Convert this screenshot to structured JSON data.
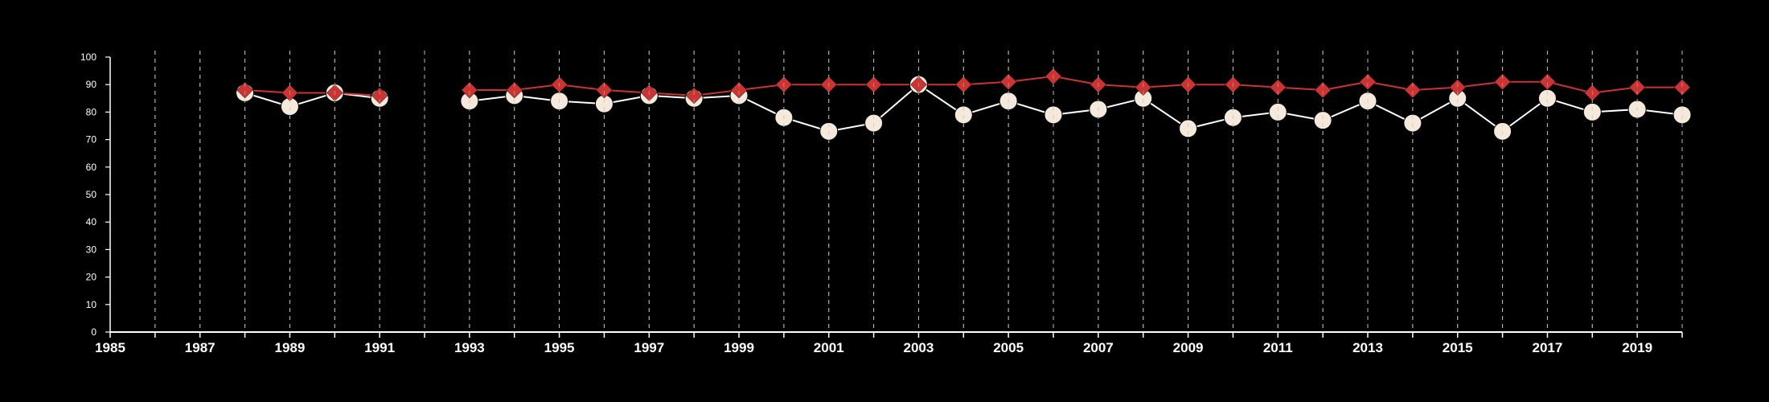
{
  "chart_data": {
    "type": "line",
    "title": "",
    "xlabel": "",
    "ylabel": "",
    "xlim": [
      1985,
      2020
    ],
    "ylim": [
      0,
      100
    ],
    "yticks": [
      0,
      10,
      20,
      30,
      40,
      50,
      60,
      70,
      80,
      90,
      100
    ],
    "xticks": [
      1985,
      1987,
      1989,
      1991,
      1993,
      1995,
      1997,
      1999,
      2001,
      2003,
      2005,
      2007,
      2009,
      2011,
      2013,
      2015,
      2017,
      2019
    ],
    "vertical_gridlines": "dashed, every year",
    "legend": "none",
    "colors": {
      "background": "#000000",
      "axis": "#ffffff",
      "grid": "#bbbbbb",
      "red_series": "#cc3333",
      "cream_series": "#f5e9dc"
    },
    "series": [
      {
        "marker": "diamond",
        "color": "#cc3333",
        "points": [
          [
            1988,
            88
          ],
          [
            1989,
            87
          ],
          [
            1990,
            87
          ],
          [
            1991,
            86
          ],
          [
            1993,
            88
          ],
          [
            1994,
            88
          ],
          [
            1995,
            90
          ],
          [
            1996,
            88
          ],
          [
            1997,
            87
          ],
          [
            1998,
            86
          ],
          [
            1999,
            88
          ],
          [
            2000,
            90
          ],
          [
            2001,
            90
          ],
          [
            2002,
            90
          ],
          [
            2003,
            90
          ],
          [
            2004,
            90
          ],
          [
            2005,
            91
          ],
          [
            2006,
            93
          ],
          [
            2007,
            90
          ],
          [
            2008,
            89
          ],
          [
            2009,
            90
          ],
          [
            2010,
            90
          ],
          [
            2011,
            89
          ],
          [
            2012,
            88
          ],
          [
            2013,
            91
          ],
          [
            2014,
            88
          ],
          [
            2015,
            89
          ],
          [
            2016,
            91
          ],
          [
            2017,
            91
          ],
          [
            2018,
            87
          ],
          [
            2019,
            89
          ],
          [
            2020,
            89
          ]
        ]
      },
      {
        "marker": "circle",
        "color": "#f5e9dc",
        "points": [
          [
            1988,
            87
          ],
          [
            1989,
            82
          ],
          [
            1990,
            87
          ],
          [
            1991,
            85
          ],
          [
            1993,
            84
          ],
          [
            1994,
            86
          ],
          [
            1995,
            84
          ],
          [
            1996,
            83
          ],
          [
            1997,
            86
          ],
          [
            1998,
            85
          ],
          [
            1999,
            86
          ],
          [
            2000,
            78
          ],
          [
            2001,
            73
          ],
          [
            2002,
            76
          ],
          [
            2003,
            90
          ],
          [
            2004,
            79
          ],
          [
            2005,
            84
          ],
          [
            2006,
            79
          ],
          [
            2007,
            81
          ],
          [
            2008,
            85
          ],
          [
            2009,
            74
          ],
          [
            2010,
            78
          ],
          [
            2011,
            80
          ],
          [
            2012,
            77
          ],
          [
            2013,
            84
          ],
          [
            2014,
            76
          ],
          [
            2015,
            85
          ],
          [
            2016,
            73
          ],
          [
            2017,
            85
          ],
          [
            2018,
            80
          ],
          [
            2019,
            81
          ],
          [
            2020,
            79
          ]
        ]
      }
    ]
  }
}
